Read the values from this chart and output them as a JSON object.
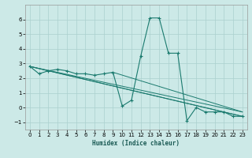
{
  "title": "",
  "xlabel": "Humidex (Indice chaleur)",
  "xlim": [
    -0.5,
    23.5
  ],
  "ylim": [
    -1.5,
    7.0
  ],
  "xticks": [
    0,
    1,
    2,
    3,
    4,
    5,
    6,
    7,
    8,
    9,
    10,
    11,
    12,
    13,
    14,
    15,
    16,
    17,
    18,
    19,
    20,
    21,
    22,
    23
  ],
  "yticks": [
    -1,
    0,
    1,
    2,
    3,
    4,
    5,
    6
  ],
  "bg_color": "#cce9e7",
  "grid_color": "#aad0ce",
  "line_color": "#1a7a6e",
  "lines": [
    {
      "x": [
        0,
        1,
        2,
        3,
        4,
        5,
        6,
        7,
        8,
        9,
        10,
        11,
        12,
        13,
        14,
        15,
        16,
        17,
        18,
        19,
        20,
        21,
        22,
        23
      ],
      "y": [
        2.8,
        2.3,
        2.5,
        2.6,
        2.5,
        2.3,
        2.3,
        2.2,
        2.3,
        2.4,
        0.1,
        0.5,
        3.5,
        6.1,
        6.1,
        3.7,
        3.7,
        -0.9,
        0.0,
        -0.3,
        -0.3,
        -0.3,
        -0.6,
        -0.6
      ],
      "marker": true
    },
    {
      "x": [
        0,
        23
      ],
      "y": [
        2.8,
        -0.6
      ],
      "marker": false
    },
    {
      "x": [
        0,
        23
      ],
      "y": [
        2.8,
        -0.3
      ],
      "marker": false
    },
    {
      "x": [
        0,
        23
      ],
      "y": [
        2.8,
        -0.6
      ],
      "marker": false
    },
    {
      "x": [
        9,
        23
      ],
      "y": [
        2.4,
        -0.3
      ],
      "marker": false
    }
  ]
}
